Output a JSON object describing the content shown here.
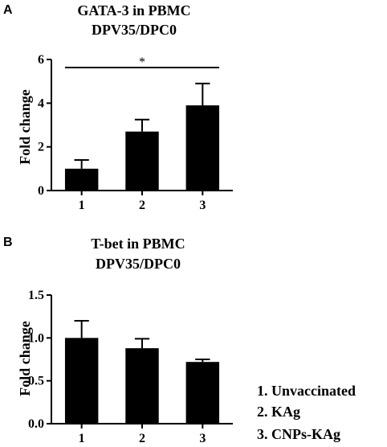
{
  "chart_data": [
    {
      "panel": "A",
      "type": "bar",
      "title": [
        "GATA-3 in PBMC",
        "DPV35/DPC0"
      ],
      "ylabel": "Fold change",
      "categories": [
        "1",
        "2",
        "3"
      ],
      "values": [
        1.0,
        2.7,
        3.9
      ],
      "errors": [
        0.4,
        0.55,
        1.0
      ],
      "ylim": [
        0,
        6
      ],
      "yticks": [
        "0",
        "2",
        "4",
        "6"
      ],
      "significance": {
        "label": "*",
        "from": "1",
        "to": "3"
      }
    },
    {
      "panel": "B",
      "type": "bar",
      "title": [
        "T-bet in PBMC",
        "DPV35/DPC0"
      ],
      "ylabel": "Fold change",
      "categories": [
        "1",
        "2",
        "3"
      ],
      "values": [
        1.0,
        0.88,
        0.72
      ],
      "errors": [
        0.2,
        0.11,
        0.03
      ],
      "ylim": [
        0,
        1.5
      ],
      "yticks": [
        "0.0",
        "0.5",
        "1.0",
        "1.5"
      ]
    }
  ],
  "legend": [
    "1. Unvaccinated",
    "2. KAg",
    "3. CNPs-KAg"
  ]
}
